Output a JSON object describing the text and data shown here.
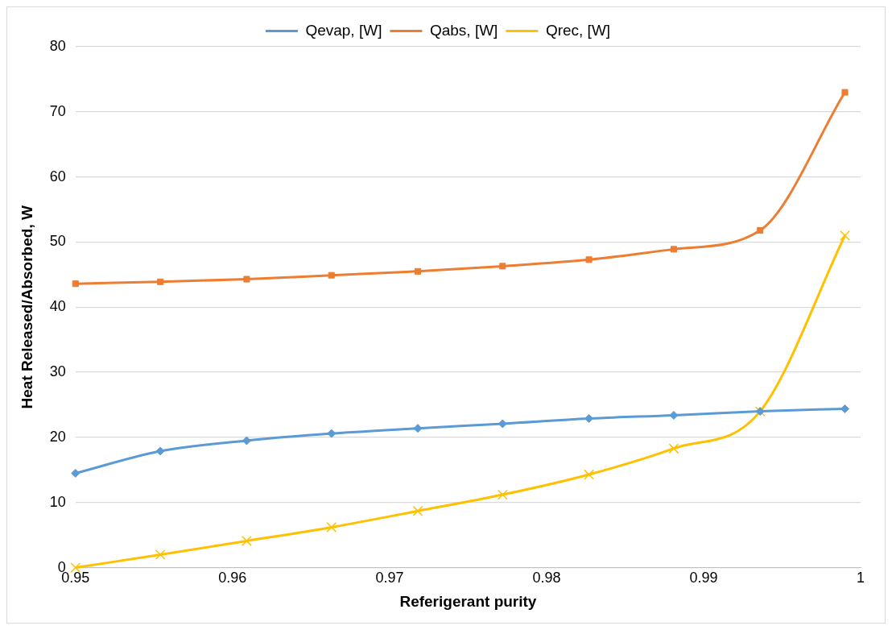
{
  "chart_data": {
    "type": "line",
    "xlabel": "Referigerant purity",
    "ylabel": "Heat Released/Absorbed, W",
    "x": [
      0.95,
      0.9554,
      0.9609,
      0.9663,
      0.9718,
      0.9772,
      0.9827,
      0.9881,
      0.9936,
      0.999
    ],
    "xlim": [
      0.95,
      1
    ],
    "xticks": [
      0.95,
      0.96,
      0.97,
      0.98,
      0.99,
      1
    ],
    "ylim": [
      0,
      80
    ],
    "yticks": [
      0,
      10,
      20,
      30,
      40,
      50,
      60,
      70,
      80
    ],
    "grid": "y",
    "legend": "top",
    "series": [
      {
        "name": "Qevap, [W]",
        "color": "#5b9bd5",
        "marker": "diamond",
        "values": [
          14.5,
          17.9,
          19.5,
          20.6,
          21.4,
          22.1,
          22.9,
          23.4,
          24.0,
          24.4
        ]
      },
      {
        "name": "Qabs, [W]",
        "color": "#ed7d31",
        "marker": "square",
        "values": [
          43.6,
          43.9,
          44.3,
          44.9,
          45.5,
          46.3,
          47.3,
          48.9,
          51.8,
          73.0
        ]
      },
      {
        "name": "Qrec, [W]",
        "color": "#ffc000",
        "marker": "cross",
        "values": [
          0,
          2.0,
          4.1,
          6.2,
          8.7,
          11.2,
          14.3,
          18.3,
          24.0,
          51.0
        ]
      }
    ]
  }
}
